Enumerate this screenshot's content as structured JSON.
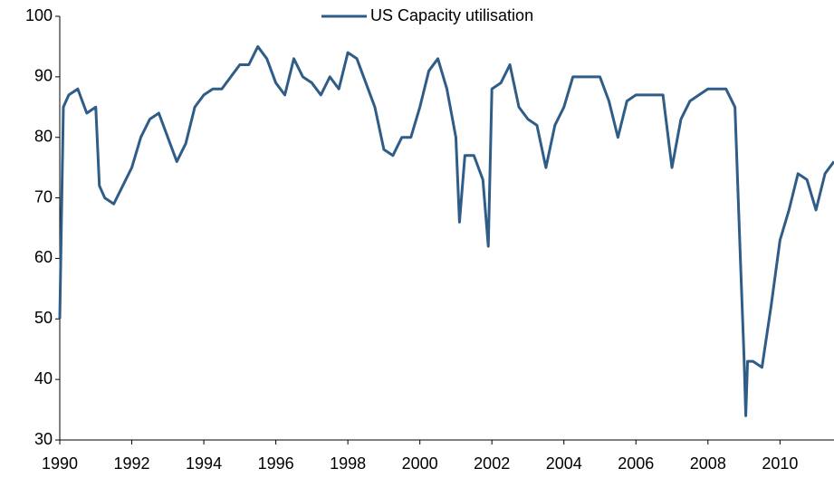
{
  "chart_data": {
    "type": "line",
    "series": [
      {
        "name": "US Capacity utilisation",
        "color": "#2f5d87",
        "x": [
          1990.0,
          1990.1,
          1990.25,
          1990.5,
          1990.75,
          1991.0,
          1991.1,
          1991.25,
          1991.5,
          1991.75,
          1992.0,
          1992.25,
          1992.5,
          1992.75,
          1993.0,
          1993.25,
          1993.5,
          1993.75,
          1994.0,
          1994.25,
          1994.5,
          1994.75,
          1995.0,
          1995.25,
          1995.5,
          1995.75,
          1996.0,
          1996.25,
          1996.5,
          1996.75,
          1997.0,
          1997.25,
          1997.5,
          1997.75,
          1998.0,
          1998.25,
          1998.5,
          1998.75,
          1999.0,
          1999.25,
          1999.5,
          1999.75,
          2000.0,
          2000.25,
          2000.5,
          2000.75,
          2001.0,
          2001.1,
          2001.25,
          2001.5,
          2001.75,
          2001.9,
          2002.0,
          2002.25,
          2002.5,
          2002.75,
          2003.0,
          2003.25,
          2003.5,
          2003.75,
          2004.0,
          2004.25,
          2004.5,
          2004.75,
          2005.0,
          2005.25,
          2005.5,
          2005.75,
          2006.0,
          2006.25,
          2006.5,
          2006.75,
          2007.0,
          2007.25,
          2007.5,
          2007.75,
          2008.0,
          2008.25,
          2008.5,
          2008.75,
          2008.9,
          2009.0,
          2009.05,
          2009.1,
          2009.25,
          2009.5,
          2009.75,
          2010.0,
          2010.25,
          2010.5,
          2010.75,
          2011.0,
          2011.25,
          2011.5
        ],
        "values": [
          50,
          85,
          87,
          88,
          84,
          85,
          72,
          70,
          69,
          72,
          75,
          80,
          83,
          84,
          80,
          76,
          79,
          85,
          87,
          88,
          88,
          90,
          92,
          92,
          95,
          93,
          89,
          87,
          93,
          90,
          89,
          87,
          90,
          88,
          94,
          93,
          89,
          85,
          78,
          77,
          80,
          80,
          85,
          91,
          93,
          88,
          80,
          66,
          77,
          77,
          73,
          62,
          88,
          89,
          92,
          85,
          83,
          82,
          75,
          82,
          85,
          90,
          90,
          90,
          90,
          86,
          80,
          86,
          87,
          87,
          87,
          87,
          75,
          83,
          86,
          87,
          88,
          88,
          88,
          85,
          60,
          44,
          34,
          43,
          43,
          42,
          52,
          63,
          68,
          74,
          73,
          68,
          74,
          76
        ]
      }
    ],
    "xlim": [
      1990,
      2011.5
    ],
    "xticks": [
      1990,
      1992,
      1994,
      1996,
      1998,
      2000,
      2002,
      2004,
      2006,
      2008,
      2010
    ],
    "ylim": [
      30,
      100
    ],
    "yticks": [
      30,
      40,
      50,
      60,
      70,
      80,
      90,
      100
    ],
    "legend": "top"
  }
}
